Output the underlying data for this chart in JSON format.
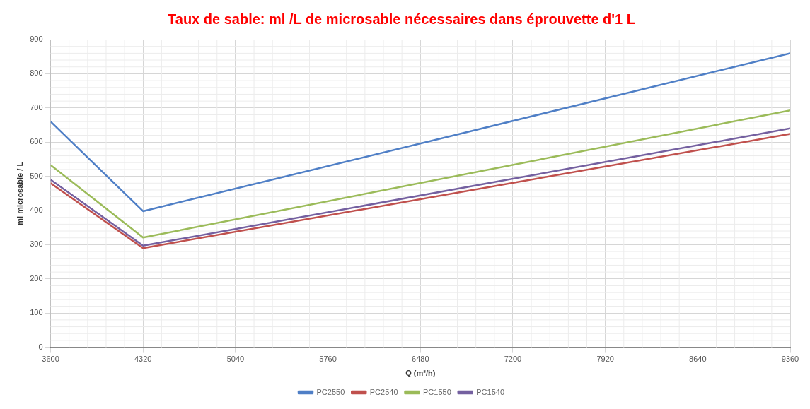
{
  "chart_data": {
    "type": "line",
    "title": "Taux de sable: ml /L de microsable nécessaires dans éprouvette d'1 L",
    "xlabel": "Q (m³/h)",
    "ylabel": "ml microsable / L",
    "x": [
      3600,
      4320,
      9360
    ],
    "series": [
      {
        "name": "PC2550",
        "color": "#4f7fc6",
        "values": [
          660,
          398,
          860
        ]
      },
      {
        "name": "PC2540",
        "color": "#c0504d",
        "values": [
          480,
          290,
          624
        ]
      },
      {
        "name": "PC1550",
        "color": "#9bbb59",
        "values": [
          533,
          321,
          693
        ]
      },
      {
        "name": "PC1540",
        "color": "#7460a0",
        "values": [
          490,
          297,
          640
        ]
      }
    ],
    "xlim": [
      3600,
      9360
    ],
    "xticks": [
      3600,
      4320,
      5040,
      5760,
      6480,
      7200,
      7920,
      8640,
      9360
    ],
    "ylim": [
      0,
      900
    ],
    "yticks": [
      0,
      100,
      200,
      300,
      400,
      500,
      600,
      700,
      800,
      900
    ],
    "grid": true,
    "legend": "bottom",
    "marker": "none",
    "line_style": "solid"
  }
}
